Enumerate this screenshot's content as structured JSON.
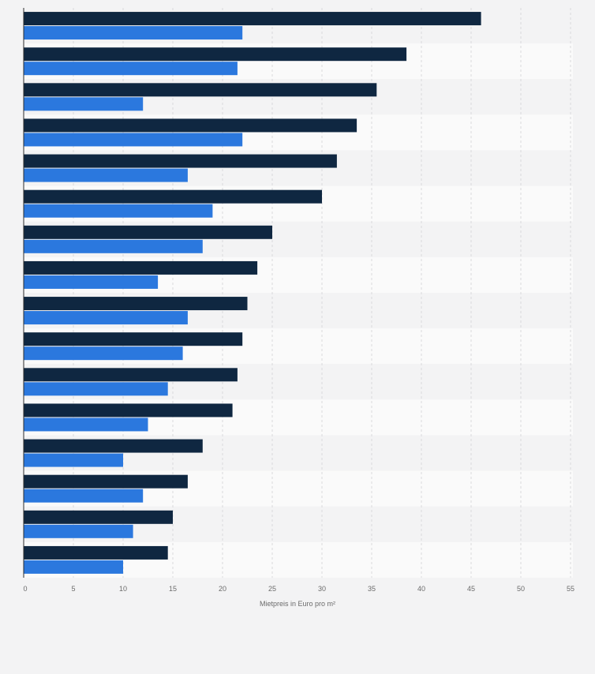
{
  "chart_data": {
    "type": "bar",
    "orientation": "horizontal",
    "categories": [
      "",
      "",
      "",
      "",
      "",
      "",
      "",
      "",
      "",
      "",
      "",
      "",
      "",
      "",
      "",
      ""
    ],
    "series": [
      {
        "values": [
          46,
          38.5,
          35.5,
          33.5,
          31.5,
          30,
          25,
          23.5,
          22.5,
          22,
          21.5,
          21,
          18,
          16.5,
          15,
          14.5
        ],
        "color": "#0f2741"
      },
      {
        "values": [
          22,
          21.5,
          12,
          22,
          16.5,
          19,
          18,
          13.5,
          16.5,
          16,
          14.5,
          12.5,
          10,
          12,
          11,
          10
        ],
        "color": "#2b78de"
      }
    ],
    "xlim": [
      0,
      55
    ],
    "x_ticks": [
      0,
      5,
      10,
      15,
      20,
      25,
      30,
      35,
      40,
      45,
      50,
      55
    ],
    "xlabel": "Mietpreis in Euro pro m²",
    "ylabel": "",
    "title": "",
    "grid": true,
    "legend": "none"
  }
}
